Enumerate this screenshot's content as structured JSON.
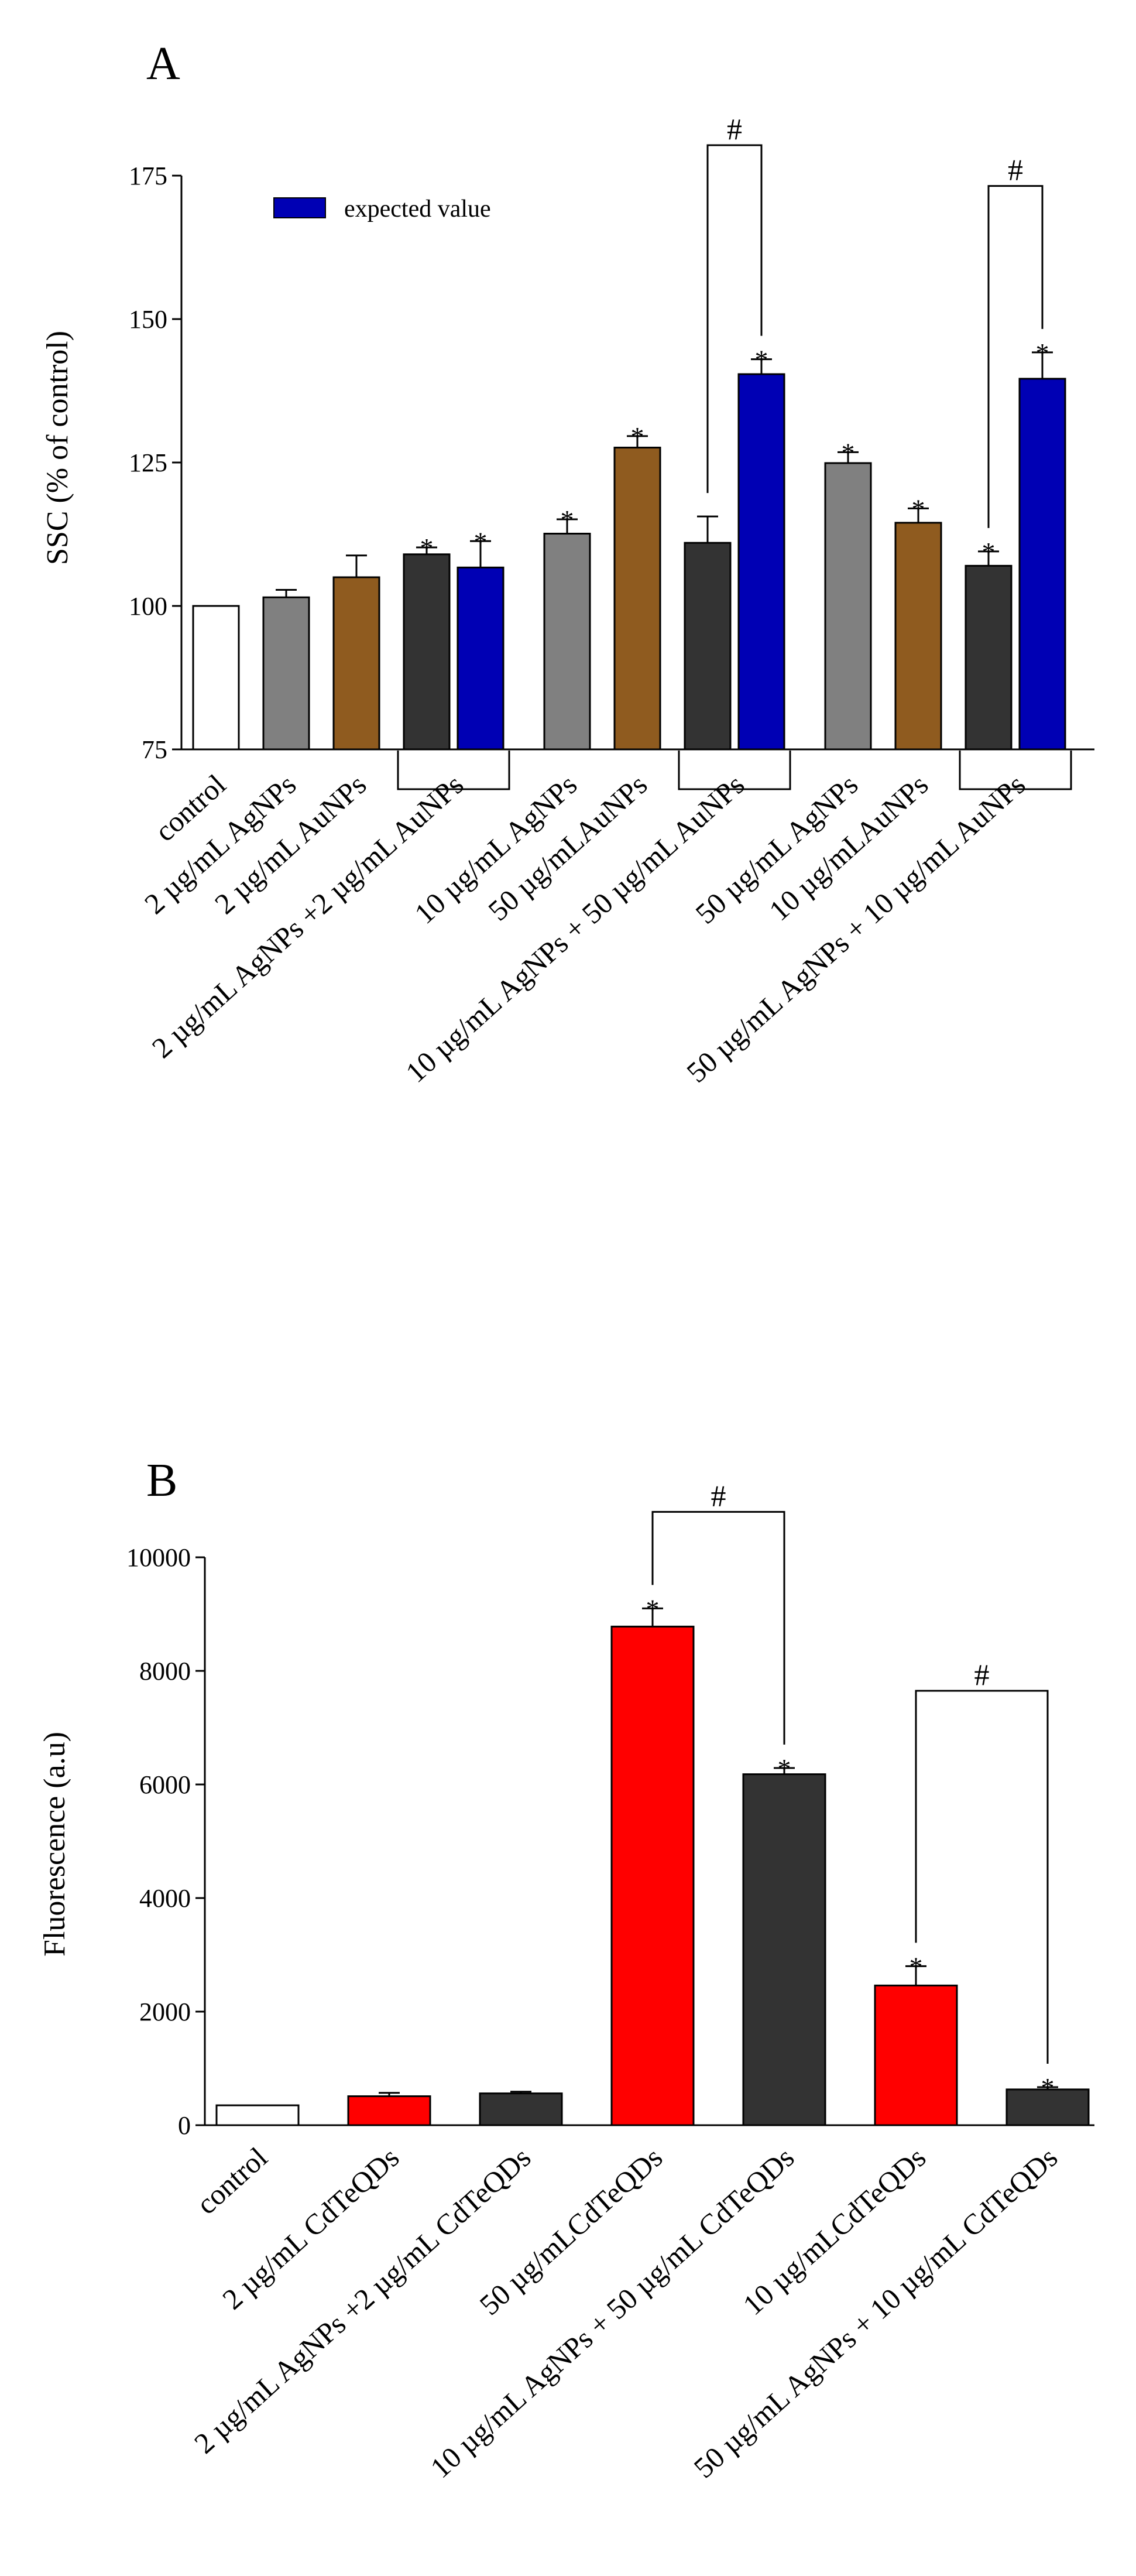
{
  "colors": {
    "white": "#ffffff",
    "gray": "#808080",
    "brown": "#8f5b1f",
    "dark": "#333333",
    "blue": "#0000b4",
    "red": "#ff0000"
  },
  "chart_data": [
    {
      "type": "bar",
      "panel_label": "A",
      "title": "",
      "xlabel": "",
      "ylabel": "SSC (% of control)",
      "ylim": [
        75,
        175
      ],
      "yticks": [
        75,
        100,
        125,
        150,
        175
      ],
      "ytick_labels": [
        "75",
        "100",
        "125",
        "150",
        "175"
      ],
      "grid": false,
      "legend_position": "top-left",
      "legend": [
        {
          "label": "expected value",
          "color": "blue"
        }
      ],
      "bars": [
        {
          "value": 100,
          "error": 0,
          "color": "white",
          "star": false
        },
        {
          "value": 101.5,
          "error": 1.3,
          "color": "gray",
          "star": false
        },
        {
          "value": 105,
          "error": 3.8,
          "color": "brown",
          "star": false
        },
        {
          "value": 109,
          "error": 1.2,
          "color": "dark",
          "star": true
        },
        {
          "value": 106.7,
          "error": 4.6,
          "color": "blue",
          "star": true
        },
        {
          "value": 112.6,
          "error": 2.5,
          "color": "gray",
          "star": true
        },
        {
          "value": 127.6,
          "error": 2.0,
          "color": "brown",
          "star": true
        },
        {
          "value": 111,
          "error": 4.6,
          "color": "dark",
          "star": false
        },
        {
          "value": 140.4,
          "error": 2.6,
          "color": "blue",
          "star": true
        },
        {
          "value": 124.9,
          "error": 1.9,
          "color": "gray",
          "star": true
        },
        {
          "value": 114.5,
          "error": 2.5,
          "color": "brown",
          "star": true
        },
        {
          "value": 107,
          "error": 2.5,
          "color": "dark",
          "star": true
        },
        {
          "value": 139.6,
          "error": 4.6,
          "color": "blue",
          "star": true
        }
      ],
      "categories": [
        {
          "label": "control",
          "bars": [
            0
          ]
        },
        {
          "label": "2 µg/mL AgNPs",
          "bars": [
            1
          ]
        },
        {
          "label": "2 µg/mL AuNPs",
          "bars": [
            2
          ]
        },
        {
          "label": "2 µg/mL AgNPs +2 µg/mL AuNPs",
          "bars": [
            3,
            4
          ]
        },
        {
          "label": "10 µg/mL AgNPs",
          "bars": [
            5
          ]
        },
        {
          "label": "50 µg/mLAuNPs",
          "bars": [
            6
          ]
        },
        {
          "label": "10 µg/mL AgNPs + 50 µg/mL AuNPs",
          "bars": [
            7,
            8
          ]
        },
        {
          "label": "50 µg/mL AgNPs",
          "bars": [
            9
          ]
        },
        {
          "label": "10 µg/mLAuNPs",
          "bars": [
            10
          ]
        },
        {
          "label": "50 µg/mL AgNPs + 10 µg/mL AuNPs",
          "bars": [
            11,
            12
          ]
        }
      ],
      "group_brackets": [
        [
          3,
          4
        ],
        [
          7,
          8
        ],
        [
          11,
          12
        ]
      ],
      "significance": [
        {
          "from": 7,
          "to": 8,
          "label": "#",
          "top": 180.3
        },
        {
          "from": 11,
          "to": 12,
          "label": "#",
          "top": 173.2
        }
      ]
    },
    {
      "type": "bar",
      "panel_label": "B",
      "title": "",
      "xlabel": "",
      "ylabel": "Fluorescence (a.u)",
      "ylim": [
        0,
        10000
      ],
      "yticks": [
        0,
        2000,
        4000,
        6000,
        8000,
        10000
      ],
      "ytick_labels": [
        "0",
        "2000",
        "4000",
        "6000",
        "8000",
        "10000"
      ],
      "grid": false,
      "bars": [
        {
          "value": 350,
          "error": 0,
          "color": "white",
          "star": false
        },
        {
          "value": 510,
          "error": 60,
          "color": "red",
          "star": false
        },
        {
          "value": 560,
          "error": 30,
          "color": "dark",
          "star": false
        },
        {
          "value": 8780,
          "error": 320,
          "color": "red",
          "star": true
        },
        {
          "value": 6180,
          "error": 110,
          "color": "dark",
          "star": true
        },
        {
          "value": 2460,
          "error": 340,
          "color": "red",
          "star": true
        },
        {
          "value": 630,
          "error": 40,
          "color": "dark",
          "star": true
        }
      ],
      "categories": [
        {
          "label": "control",
          "bars": [
            0
          ]
        },
        {
          "label": "2 µg/mL CdTeQDs",
          "bars": [
            1
          ]
        },
        {
          "label": "2 µg/mL AgNPs +2 µg/mL CdTeQDs",
          "bars": [
            2
          ]
        },
        {
          "label": "50 µg/mLCdTeQDs",
          "bars": [
            3
          ]
        },
        {
          "label": "10 µg/mL AgNPs + 50 µg/mL CdTeQDs",
          "bars": [
            4
          ]
        },
        {
          "label": "10 µg/mLCdTeQDs",
          "bars": [
            5
          ]
        },
        {
          "label": "50 µg/mL AgNPs + 10 µg/mL CdTeQDs",
          "bars": [
            6
          ]
        }
      ],
      "group_brackets": [],
      "significance": [
        {
          "from": 3,
          "to": 4,
          "label": "#",
          "top": 10800
        },
        {
          "from": 5,
          "to": 6,
          "label": "#",
          "top": 7650
        }
      ]
    }
  ]
}
